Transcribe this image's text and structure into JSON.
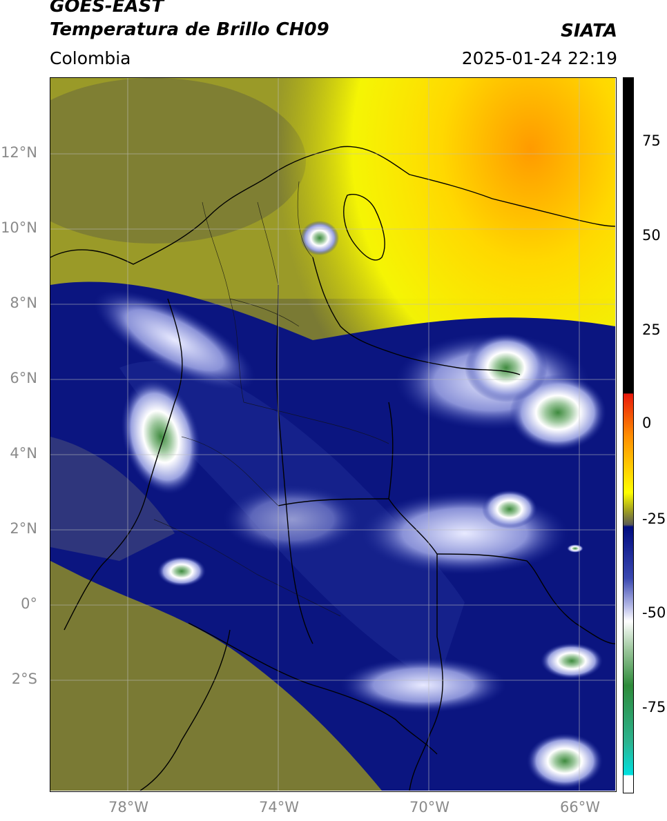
{
  "header": {
    "satellite": "GOES-EAST",
    "product": "Temperatura de Brillo CH09",
    "region": "Colombia",
    "organization": "SIATA",
    "timestamp": "2025-01-24 22:19"
  },
  "map": {
    "lat_labels": [
      "12°N",
      "10°N",
      "8°N",
      "6°N",
      "4°N",
      "2°N",
      "0°",
      "2°S"
    ],
    "lon_labels": [
      "78°W",
      "74°W",
      "70°W",
      "66°W"
    ]
  },
  "colorbar": {
    "tick_labels": [
      "75",
      "50",
      "25",
      "0",
      "-25",
      "-50",
      "-75"
    ],
    "colors": {
      "black": "#000000",
      "red": "#e8190b",
      "orange": "#ff8c00",
      "yellow": "#ffff00",
      "olive": "#8a8a2a",
      "gray": "#5a5a55",
      "navy": "#000c80",
      "blue": "#3a48b0",
      "lavender": "#b8bce8",
      "white": "#ffffff",
      "green": "#2e8b3a",
      "teal": "#2cb490",
      "cyan": "#00e0e0"
    }
  }
}
